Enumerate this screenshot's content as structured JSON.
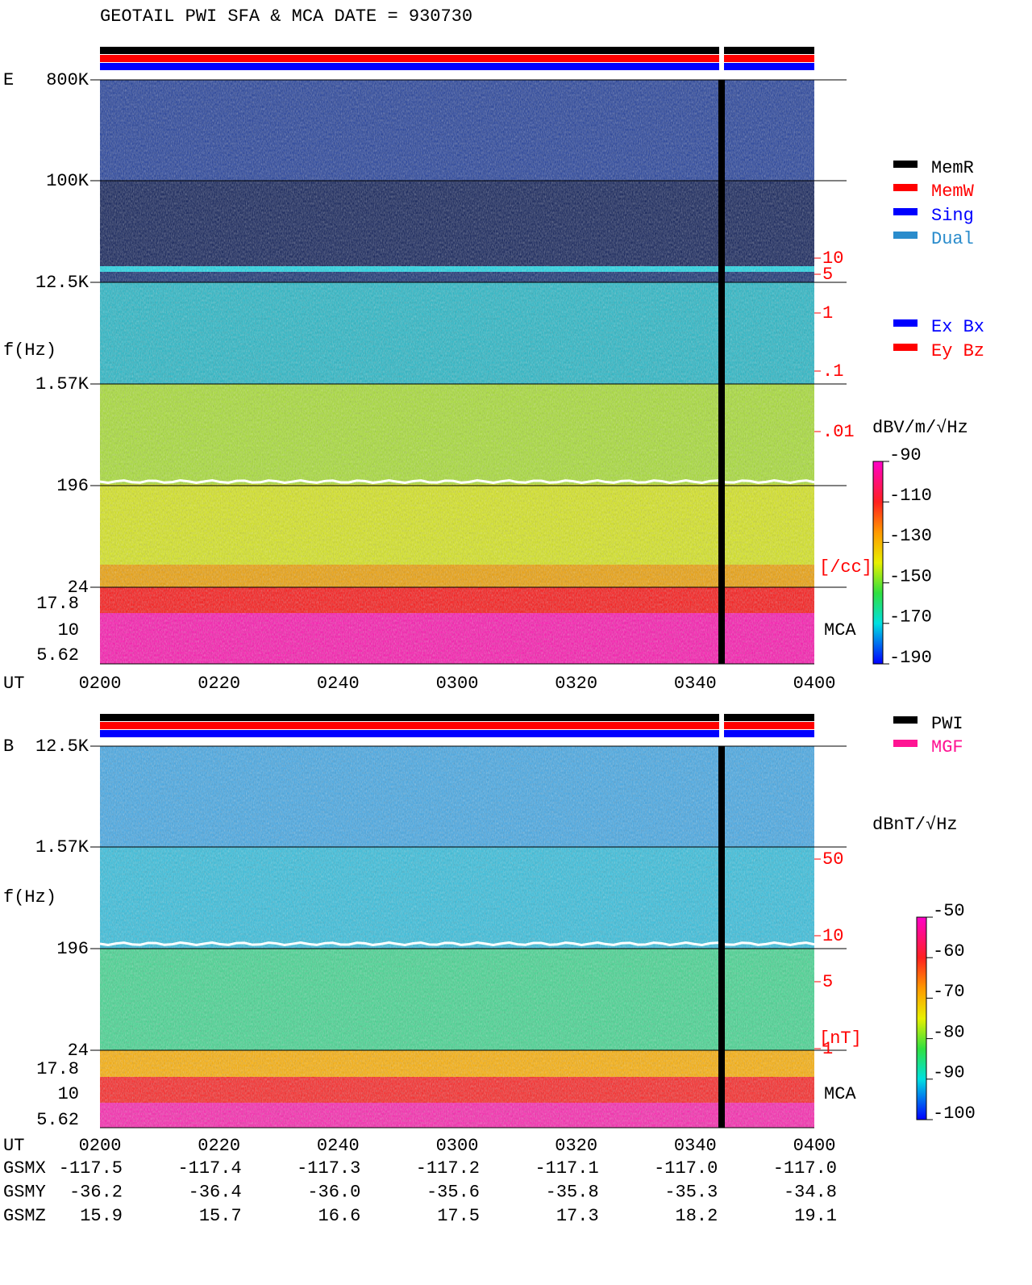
{
  "header": {
    "title": "GEOTAIL  PWI SFA & MCA   DATE = 930730"
  },
  "panels": [
    {
      "label": "E",
      "y_label": "f(Hz)",
      "freq_ticks": [
        "800K",
        "100K",
        "12.5K",
        "1.57K",
        "196",
        "24"
      ],
      "mca_ticks": [
        "17.8",
        "10",
        "5.62"
      ],
      "mca_label": "MCA",
      "time_label": "UT",
      "time_ticks": [
        "0200",
        "0220",
        "0240",
        "0300",
        "0320",
        "0340",
        "0400"
      ],
      "right_ticks": [
        "10",
        "5",
        "1",
        ".1",
        ".01"
      ],
      "right_unit": "[/cc]",
      "legend": [
        {
          "label": "MemR",
          "color": "#000000"
        },
        {
          "label": "MemW",
          "color": "#ff0000"
        },
        {
          "label": "Sing",
          "color": "#0000ff"
        },
        {
          "label": "Dual",
          "color": "#2a8ccc"
        }
      ],
      "legend2": [
        {
          "label": "Ex Bx",
          "color": "#0000ff"
        },
        {
          "label": "Ey Bz",
          "color": "#ff0000"
        }
      ],
      "colorbar": {
        "unit": "dBV/m/√Hz",
        "ticks": [
          "-90",
          "-110",
          "-130",
          "-150",
          "-170",
          "-190"
        ]
      }
    },
    {
      "label": "B",
      "y_label": "f(Hz)",
      "freq_ticks": [
        "12.5K",
        "1.57K",
        "196",
        "24"
      ],
      "mca_ticks": [
        "17.8",
        "10",
        "5.62"
      ],
      "mca_label": "MCA",
      "time_label": "UT",
      "time_ticks": [
        "0200",
        "0220",
        "0240",
        "0300",
        "0320",
        "0340",
        "0400"
      ],
      "right_ticks": [
        "50",
        "10",
        "5",
        "1"
      ],
      "right_unit": "[nT]",
      "legend": [
        {
          "label": "PWI",
          "color": "#000000"
        },
        {
          "label": "MGF",
          "color": "#ff1493"
        }
      ],
      "colorbar": {
        "unit": "dBnT/√Hz",
        "ticks": [
          "-50",
          "-60",
          "-70",
          "-80",
          "-90",
          "-100"
        ]
      }
    }
  ],
  "orbit": {
    "rows": [
      {
        "label": "GSMX",
        "values": [
          "-117.5",
          "-117.4",
          "-117.3",
          "-117.2",
          "-117.1",
          "-117.0",
          "-117.0"
        ]
      },
      {
        "label": "GSMY",
        "values": [
          "-36.2",
          "-36.4",
          "-36.0",
          "-35.6",
          "-35.8",
          "-35.3",
          "-34.8"
        ]
      },
      {
        "label": "GSMZ",
        "values": [
          "15.9",
          "15.7",
          "16.6",
          "17.5",
          "17.3",
          "18.2",
          "19.1"
        ]
      }
    ]
  }
}
